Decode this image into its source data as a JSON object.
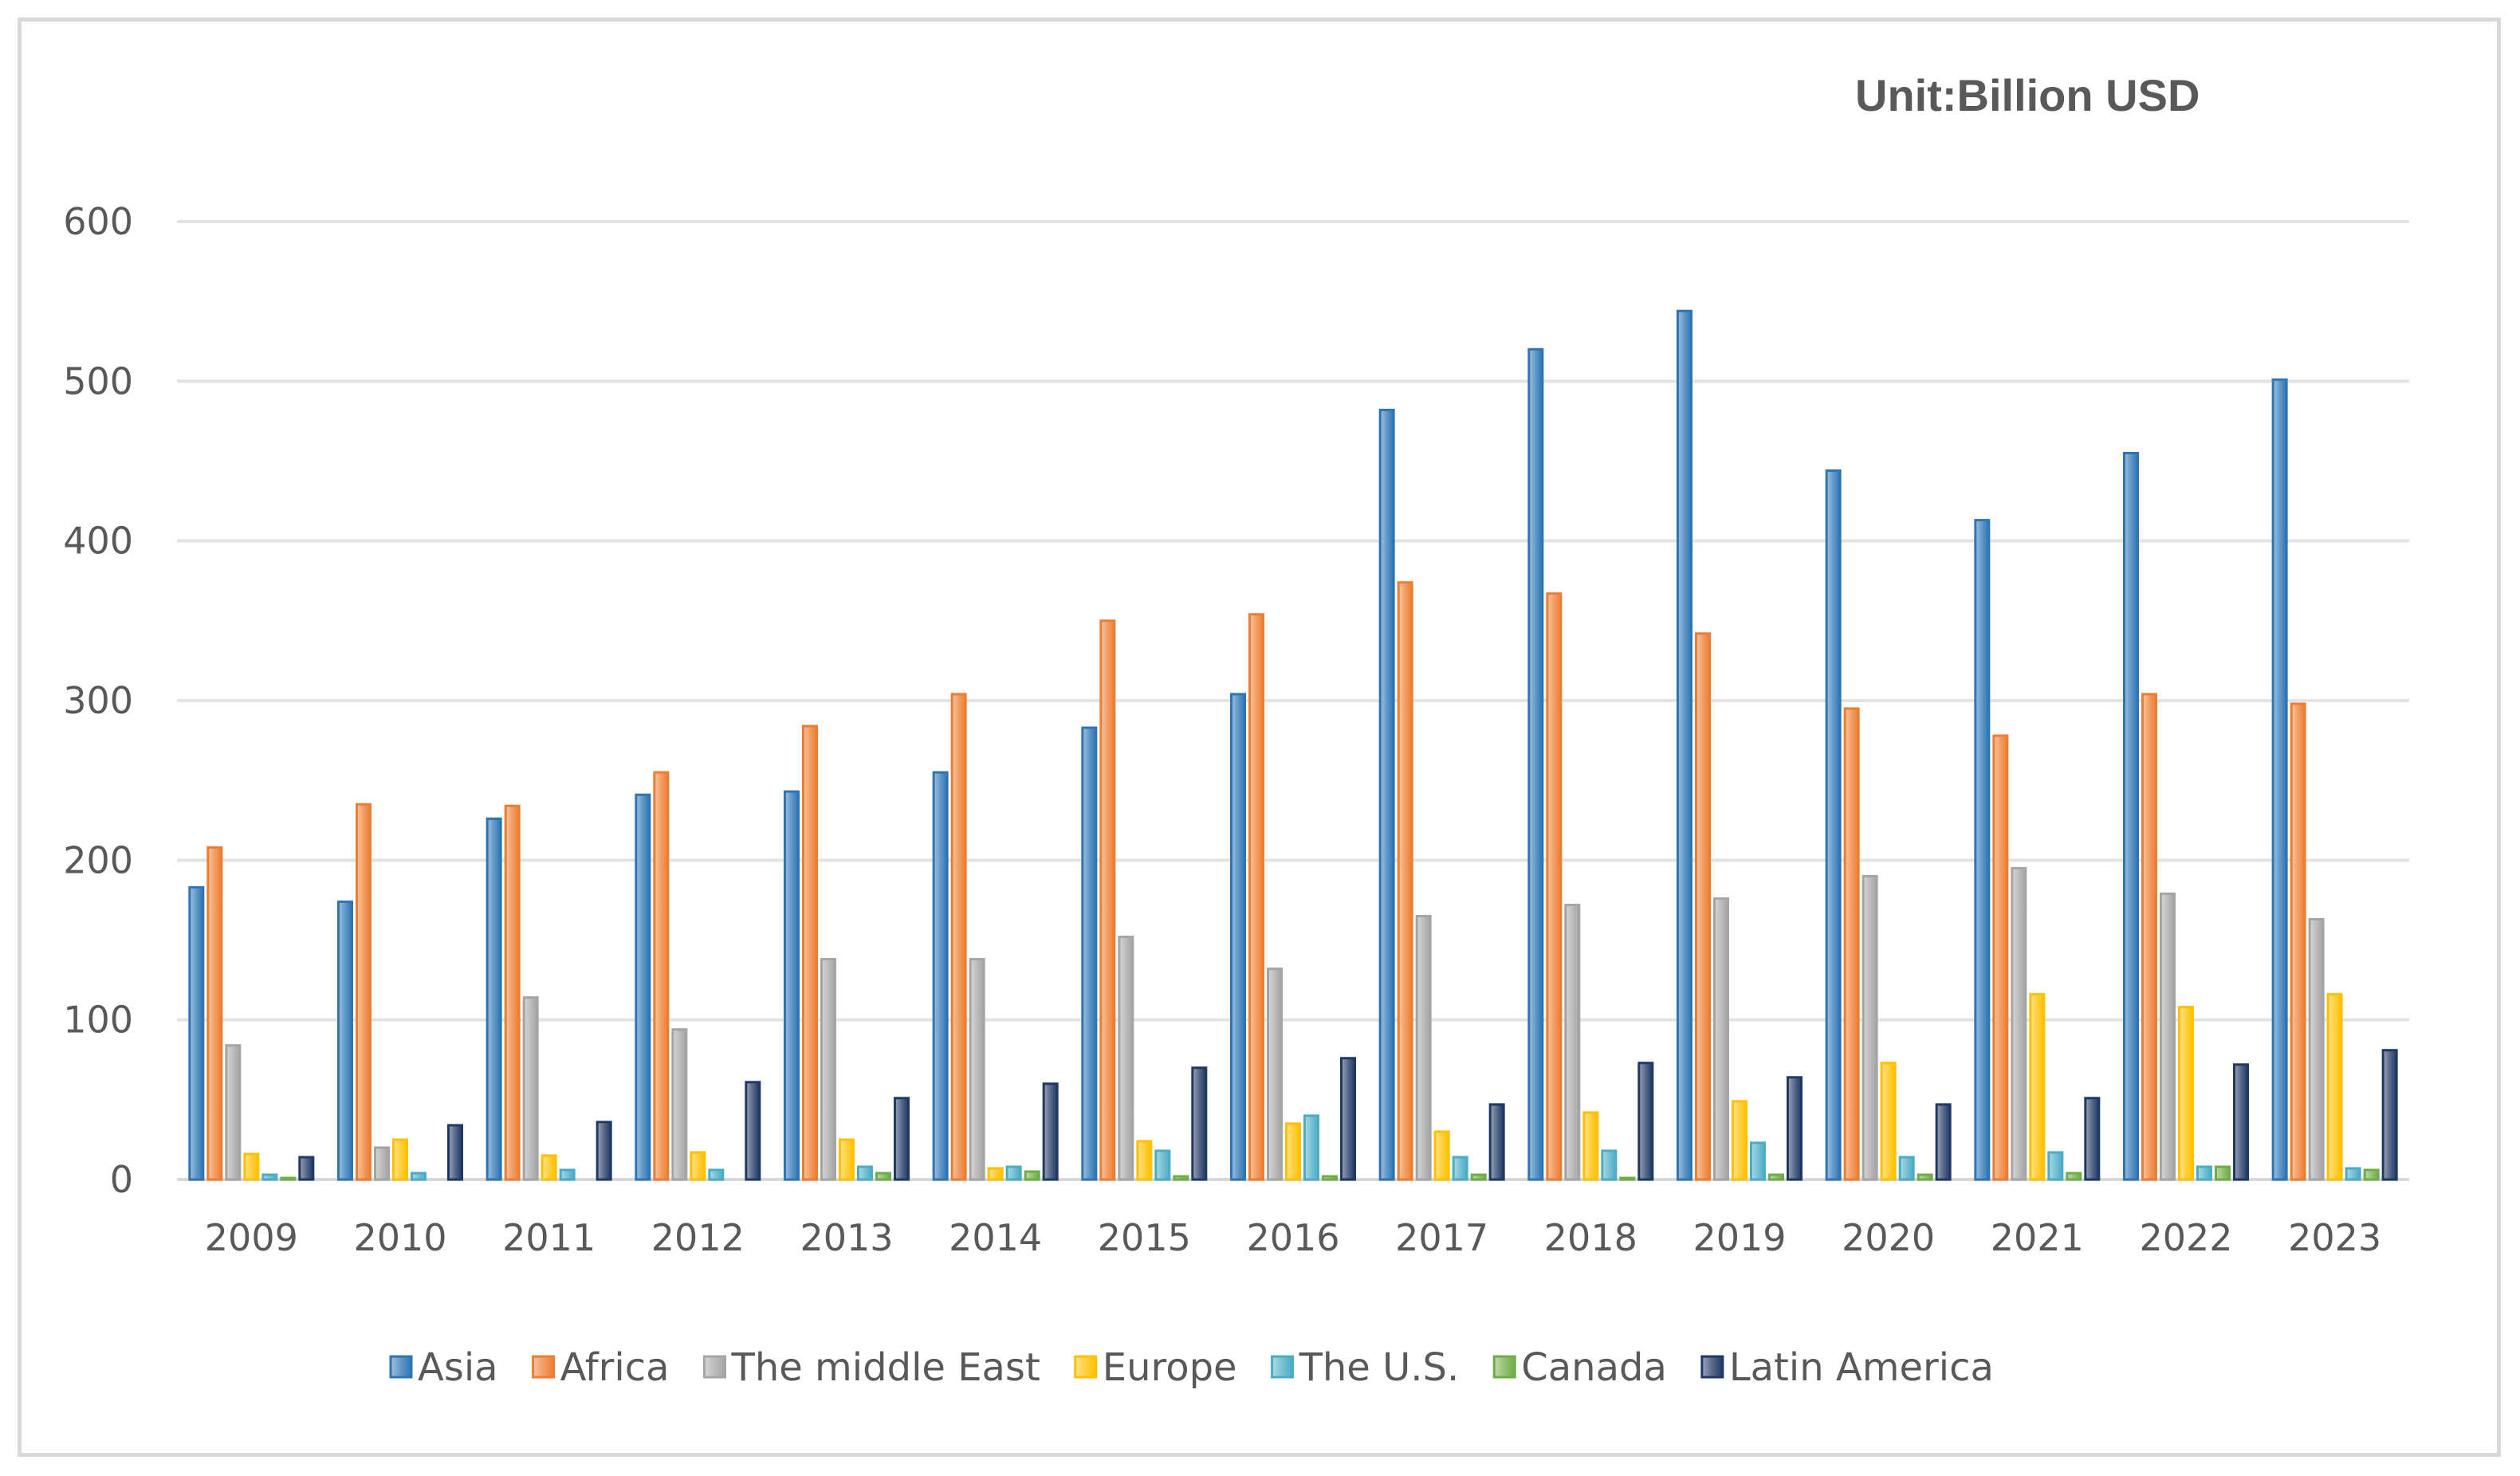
{
  "chart_data": {
    "type": "bar",
    "unit_label": "Unit:Billion USD",
    "categories": [
      "2009",
      "2010",
      "2011",
      "2012",
      "2013",
      "2014",
      "2015",
      "2016",
      "2017",
      "2018",
      "2019",
      "2020",
      "2021",
      "2022",
      "2023"
    ],
    "ylim": [
      0,
      600
    ],
    "yticks": [
      0,
      100,
      200,
      300,
      400,
      500,
      600
    ],
    "grid": true,
    "legend_position": "bottom",
    "series": [
      {
        "name": "Asia",
        "color": "#2E75B6",
        "values": [
          183,
          174,
          226,
          241,
          243,
          255,
          283,
          304,
          482,
          520,
          544,
          444,
          413,
          455,
          501
        ]
      },
      {
        "name": "Africa",
        "color": "#ED7D31",
        "values": [
          208,
          235,
          234,
          255,
          284,
          304,
          350,
          354,
          374,
          367,
          342,
          295,
          278,
          304,
          298
        ]
      },
      {
        "name": "The middle East",
        "color": "#A5A5A5",
        "values": [
          84,
          20,
          114,
          94,
          138,
          138,
          152,
          132,
          165,
          172,
          176,
          190,
          195,
          179,
          163
        ]
      },
      {
        "name": "Europe",
        "color": "#FFC000",
        "values": [
          16,
          25,
          15,
          17,
          25,
          7,
          24,
          35,
          30,
          42,
          49,
          73,
          116,
          108,
          116
        ]
      },
      {
        "name": "The U.S.",
        "color": "#4BACC6",
        "values": [
          3,
          4,
          6,
          6,
          8,
          8,
          18,
          40,
          14,
          18,
          23,
          14,
          17,
          8,
          7
        ]
      },
      {
        "name": "Canada",
        "color": "#70AD47",
        "values": [
          1,
          0,
          0,
          0,
          4,
          5,
          2,
          2,
          3,
          1,
          3,
          3,
          4,
          8,
          6
        ]
      },
      {
        "name": "Latin America",
        "color": "#1F3864",
        "values": [
          14,
          34,
          36,
          61,
          51,
          60,
          70,
          76,
          47,
          73,
          64,
          47,
          51,
          72,
          81
        ]
      }
    ]
  }
}
